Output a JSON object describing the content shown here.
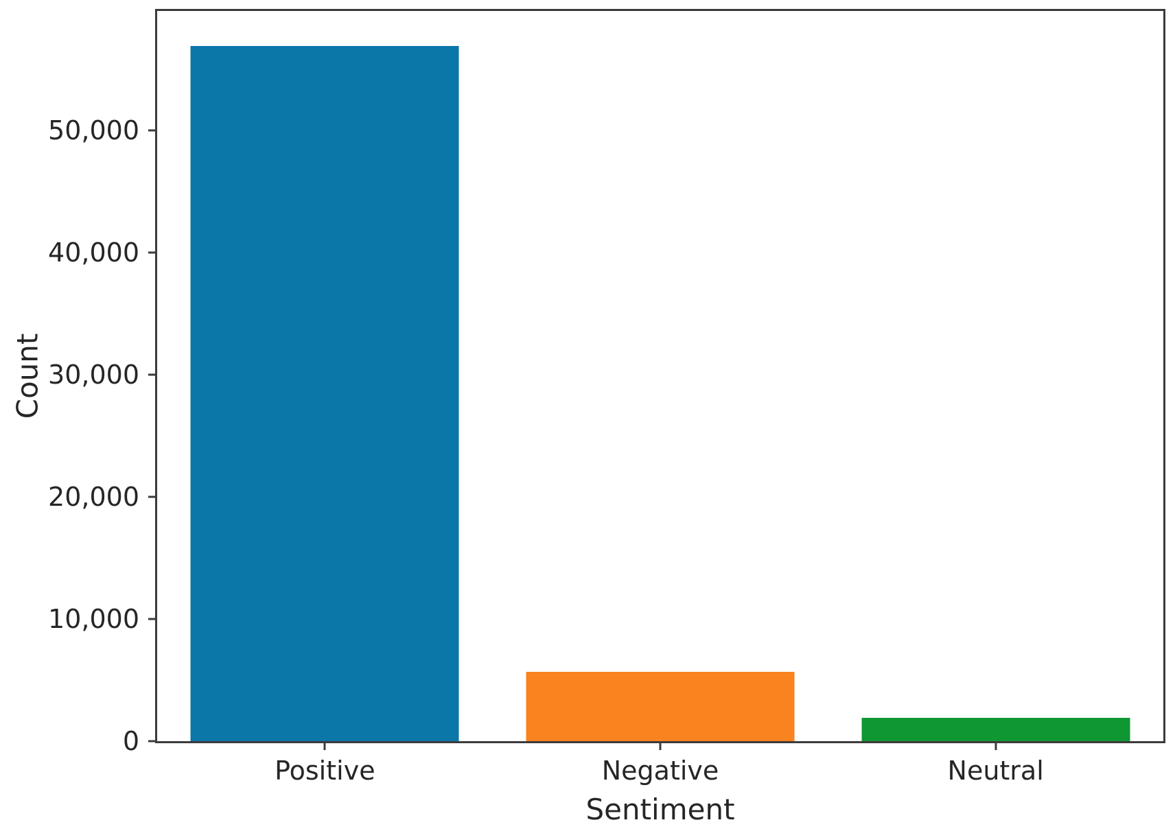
{
  "chart_data": {
    "type": "bar",
    "title": "",
    "categories": [
      "Positive",
      "Negative",
      "Neutral"
    ],
    "values": [
      56900,
      5700,
      1900
    ],
    "colors": [
      "#0b76a8",
      "#f9831e",
      "#0f9733"
    ],
    "xlabel": "Sentiment",
    "ylabel": "Count",
    "ylim": [
      0,
      59780
    ],
    "bar_width_fraction": 0.8,
    "yticks": [
      {
        "value": 0,
        "label": "0"
      },
      {
        "value": 10000,
        "label": "10,000"
      },
      {
        "value": 20000,
        "label": "20,000"
      },
      {
        "value": 30000,
        "label": "30,000"
      },
      {
        "value": 40000,
        "label": "40,000"
      },
      {
        "value": 50000,
        "label": "50,000"
      }
    ],
    "grid": false,
    "legend": "none"
  },
  "style": {
    "spine_color": "#3b3b3b",
    "text_color": "#262626",
    "background_color": "#ffffff"
  }
}
